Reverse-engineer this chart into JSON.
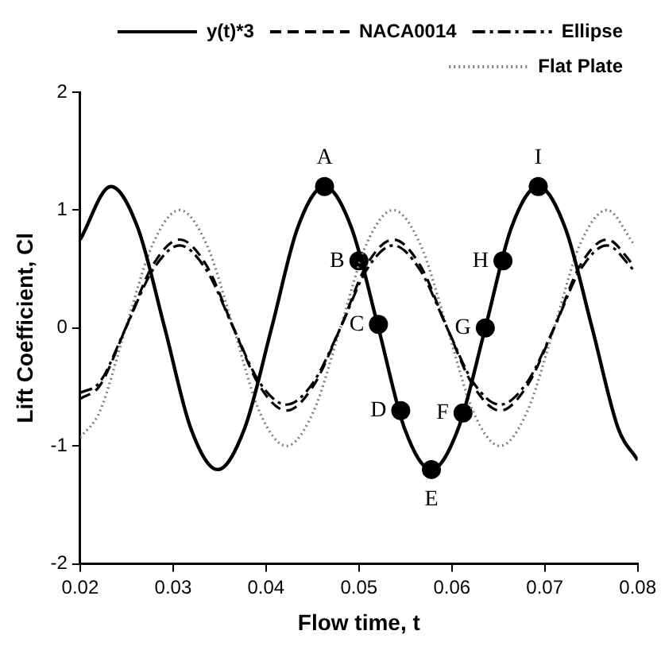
{
  "chart_data": {
    "type": "line",
    "xlabel": "Flow time, t",
    "ylabel": "Lift Coefficient, Cl",
    "xlim": [
      0.02,
      0.08
    ],
    "xticks": [
      0.02,
      0.03,
      0.04,
      0.05,
      0.06,
      0.07,
      0.08
    ],
    "ylim": [
      -2,
      2
    ],
    "yticks": [
      -2,
      -1,
      0,
      1,
      2
    ],
    "grid": false,
    "legend": "top right",
    "marker": "none",
    "series": [
      {
        "name": "y(t)*3",
        "color": "#000000",
        "line_style": "solid",
        "x": [
          0.02,
          0.0233,
          0.0262,
          0.0291,
          0.0319,
          0.0348,
          0.0377,
          0.0406,
          0.0434,
          0.0463,
          0.0492,
          0.0521,
          0.0549,
          0.0578,
          0.0607,
          0.0636,
          0.0664,
          0.0693,
          0.0722,
          0.0751,
          0.0779,
          0.08
        ],
        "values": [
          0.75,
          1.2,
          0.85,
          0,
          -0.85,
          -1.2,
          -0.85,
          0,
          0.85,
          1.2,
          0.85,
          0,
          -0.85,
          -1.2,
          -0.85,
          0,
          0.85,
          1.2,
          0.85,
          0,
          -0.85,
          -1.12
        ]
      },
      {
        "name": "NACA0014",
        "color": "#000000",
        "line_style": "dashed",
        "x": [
          0.02,
          0.0221,
          0.0249,
          0.0278,
          0.0307,
          0.0336,
          0.0365,
          0.0393,
          0.0422,
          0.0451,
          0.048,
          0.0508,
          0.0537,
          0.0566,
          0.0595,
          0.0623,
          0.0652,
          0.0681,
          0.071,
          0.0738,
          0.0767,
          0.0796
        ],
        "values": [
          -0.6,
          -0.49,
          0,
          0.53,
          0.75,
          0.53,
          0,
          -0.49,
          -0.7,
          -0.49,
          0,
          0.53,
          0.75,
          0.53,
          0,
          -0.49,
          -0.7,
          -0.49,
          0,
          0.53,
          0.75,
          0.53
        ]
      },
      {
        "name": "Ellipse",
        "color": "#000000",
        "line_style": "dashdot",
        "x": [
          0.02,
          0.0221,
          0.0249,
          0.0278,
          0.0307,
          0.0336,
          0.0365,
          0.0393,
          0.0422,
          0.0451,
          0.048,
          0.0508,
          0.0537,
          0.0566,
          0.0595,
          0.0623,
          0.0652,
          0.0681,
          0.071,
          0.0738,
          0.0767,
          0.0796
        ],
        "values": [
          -0.55,
          -0.46,
          0,
          0.49,
          0.7,
          0.49,
          0,
          -0.46,
          -0.65,
          -0.46,
          0,
          0.49,
          0.7,
          0.49,
          0,
          -0.46,
          -0.65,
          -0.46,
          0,
          0.49,
          0.7,
          0.49
        ]
      },
      {
        "name": "Flat Plate",
        "color": "#808080",
        "line_style": "dotted",
        "x": [
          0.02,
          0.0221,
          0.0249,
          0.0278,
          0.0307,
          0.0336,
          0.0365,
          0.0393,
          0.0422,
          0.0451,
          0.048,
          0.0508,
          0.0537,
          0.0566,
          0.0595,
          0.0623,
          0.0652,
          0.0681,
          0.071,
          0.0738,
          0.0767,
          0.0796
        ],
        "values": [
          -0.93,
          -0.71,
          0,
          0.71,
          1,
          0.71,
          0,
          -0.71,
          -1,
          -0.71,
          0,
          0.71,
          1,
          0.71,
          0,
          -0.71,
          -1,
          -0.71,
          0,
          0.71,
          1,
          0.71
        ]
      },
      {
        "type": "scatter",
        "marker": "circle",
        "color": "#000000",
        "x": [
          0.0463,
          0.05,
          0.0521,
          0.0545,
          0.0578,
          0.0612,
          0.0636,
          0.0655,
          0.0693
        ],
        "values": [
          1.2,
          0.57,
          0.03,
          -0.7,
          -1.2,
          -0.72,
          0,
          0.57,
          1.2
        ]
      }
    ],
    "annotations": [
      {
        "text": "A",
        "x": 0.0463,
        "y": 1.2
      },
      {
        "text": "B",
        "x": 0.05,
        "y": 0.57
      },
      {
        "text": "C",
        "x": 0.0521,
        "y": 0.03
      },
      {
        "text": "D",
        "x": 0.0545,
        "y": -0.7
      },
      {
        "text": "E",
        "x": 0.0578,
        "y": -1.2
      },
      {
        "text": "F",
        "x": 0.0612,
        "y": -0.72
      },
      {
        "text": "G",
        "x": 0.0636,
        "y": 0
      },
      {
        "text": "H",
        "x": 0.0655,
        "y": 0.57
      },
      {
        "text": "I",
        "x": 0.0693,
        "y": 1.2
      }
    ]
  }
}
